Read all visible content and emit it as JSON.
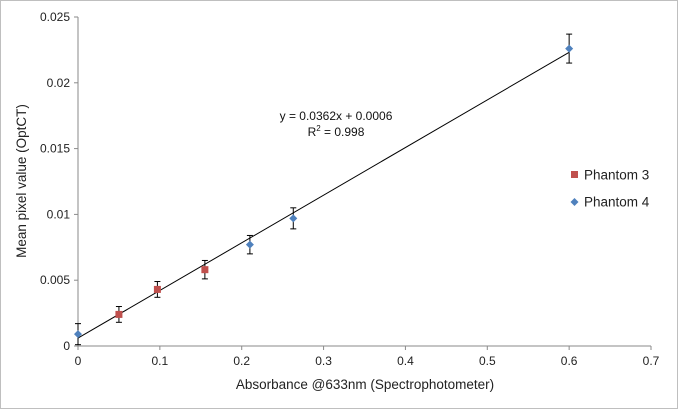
{
  "chart_data": {
    "type": "scatter",
    "title": "",
    "xlabel": "Absorbance @633nm (Spectrophotometer)",
    "ylabel": "Mean pixel value (OptCT)",
    "xlim": [
      0,
      0.7
    ],
    "ylim": [
      0,
      0.025
    ],
    "x_ticks": [
      0,
      0.1,
      0.2,
      0.3,
      0.4,
      0.5,
      0.6,
      0.7
    ],
    "x_tick_labels": [
      "0",
      "0.1",
      "0.2",
      "0.3",
      "0.4",
      "0.5",
      "0.6",
      "0.7"
    ],
    "y_ticks": [
      0,
      0.005,
      0.01,
      0.015,
      0.02,
      0.025
    ],
    "y_tick_labels": [
      "0",
      "0.005",
      "0.01",
      "0.015",
      "0.02",
      "0.025"
    ],
    "grid": false,
    "legend_position": "right",
    "series": [
      {
        "name": "Phantom 3",
        "marker": "square",
        "color": "#c0504d",
        "points": [
          {
            "x": 0.05,
            "y": 0.0024,
            "err": 0.0006
          },
          {
            "x": 0.097,
            "y": 0.0043,
            "err": 0.0006
          },
          {
            "x": 0.155,
            "y": 0.0058,
            "err": 0.0007
          }
        ]
      },
      {
        "name": "Phantom 4",
        "marker": "diamond",
        "color": "#4f81bd",
        "points": [
          {
            "x": 0.0,
            "y": 0.0009,
            "err": 0.0008
          },
          {
            "x": 0.21,
            "y": 0.0077,
            "err": 0.0007
          },
          {
            "x": 0.263,
            "y": 0.0097,
            "err": 0.0008
          },
          {
            "x": 0.6,
            "y": 0.0226,
            "err": 0.0011
          }
        ]
      }
    ],
    "trendline": {
      "slope": 0.0362,
      "intercept": 0.0006,
      "x_range": [
        0,
        0.6
      ],
      "color": "#000000"
    },
    "annotations": {
      "equation": "y = 0.0362x + 0.0006",
      "r_squared_prefix": "R",
      "r_squared_suffix": " = 0.998"
    }
  }
}
